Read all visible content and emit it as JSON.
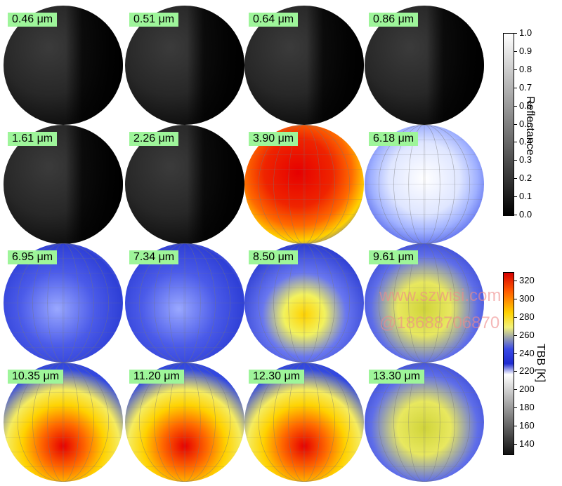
{
  "panels": [
    {
      "label": "0.46 μm",
      "style": "dark"
    },
    {
      "label": "0.51 μm",
      "style": "dark"
    },
    {
      "label": "0.64 μm",
      "style": "dark"
    },
    {
      "label": "0.86 μm",
      "style": "dark"
    },
    {
      "label": "1.61 μm",
      "style": "dark"
    },
    {
      "label": "2.26 μm",
      "style": "dark"
    },
    {
      "label": "3.90 μm",
      "style": "hot"
    },
    {
      "label": "6.18 μm",
      "style": "cold"
    },
    {
      "label": "6.95 μm",
      "style": "wv1"
    },
    {
      "label": "7.34 μm",
      "style": "wv1"
    },
    {
      "label": "8.50 μm",
      "style": "wv2"
    },
    {
      "label": "9.61 μm",
      "style": "ir2"
    },
    {
      "label": "10.35 μm",
      "style": "ir"
    },
    {
      "label": "11.20 μm",
      "style": "ir"
    },
    {
      "label": "12.30 μm",
      "style": "ir"
    },
    {
      "label": "13.30 μm",
      "style": "ir2"
    }
  ],
  "reflectance_bar": {
    "title": "Reflectance",
    "ticks": [
      "1.0",
      "0.9",
      "0.8",
      "0.7",
      "0.6",
      "0.5",
      "0.4",
      "0.3",
      "0.2",
      "0.1",
      "0.0"
    ]
  },
  "tbb_bar": {
    "title": "TBB [K]",
    "ticks": [
      "320",
      "300",
      "280",
      "260",
      "240",
      "220",
      "200",
      "180",
      "160",
      "140"
    ]
  },
  "watermark": {
    "line1": "www.szwisi.com",
    "line2": "@18688706870"
  }
}
